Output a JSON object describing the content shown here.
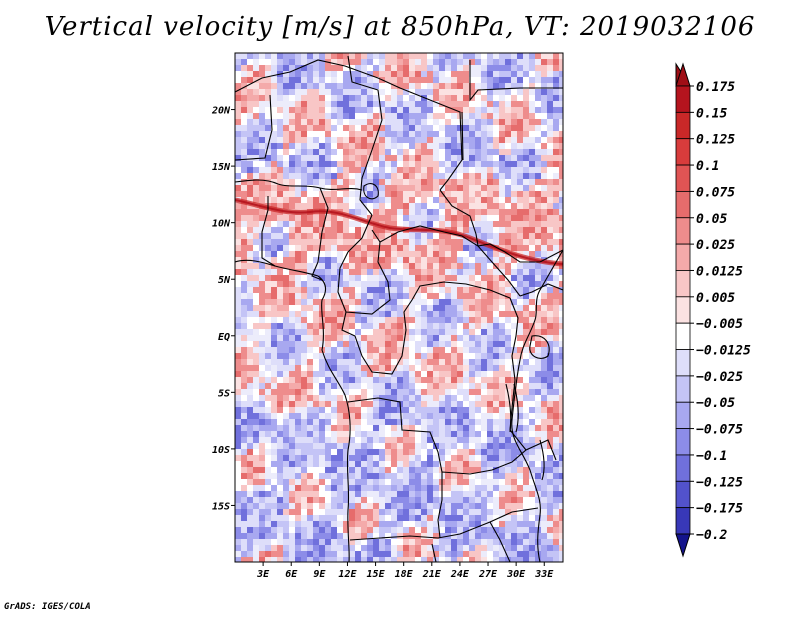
{
  "title": "Vertical velocity [m/s] at 850hPa, VT: 2019032106",
  "credit": "GrADS: IGES/COLA",
  "map": {
    "variable": "Vertical velocity",
    "units": "m/s",
    "level": "850hPa",
    "valid_time": "2019032106",
    "lon_range": [
      0,
      35
    ],
    "lat_range": [
      -20,
      25
    ],
    "lat_ticks": [
      {
        "value": 20,
        "label": "20N"
      },
      {
        "value": 15,
        "label": "15N"
      },
      {
        "value": 10,
        "label": "10N"
      },
      {
        "value": 5,
        "label": "5N"
      },
      {
        "value": 0,
        "label": "EQ"
      },
      {
        "value": -5,
        "label": "5S"
      },
      {
        "value": -10,
        "label": "10S"
      },
      {
        "value": -15,
        "label": "15S"
      }
    ],
    "lon_ticks": [
      {
        "value": 3,
        "label": "3E"
      },
      {
        "value": 6,
        "label": "6E"
      },
      {
        "value": 9,
        "label": "9E"
      },
      {
        "value": 12,
        "label": "12E"
      },
      {
        "value": 15,
        "label": "15E"
      },
      {
        "value": 18,
        "label": "18E"
      },
      {
        "value": 21,
        "label": "21E"
      },
      {
        "value": 24,
        "label": "24E"
      },
      {
        "value": 27,
        "label": "27E"
      },
      {
        "value": 30,
        "label": "30E"
      },
      {
        "value": 33,
        "label": "33E"
      }
    ]
  },
  "colorbar": {
    "levels": [
      {
        "label": "0.175",
        "color": "#b5141e"
      },
      {
        "label": "0.15",
        "color": "#c92828"
      },
      {
        "label": "0.125",
        "color": "#d83c3c"
      },
      {
        "label": "0.1",
        "color": "#e05454"
      },
      {
        "label": "0.075",
        "color": "#e66c6c"
      },
      {
        "label": "0.05",
        "color": "#ee8c8c"
      },
      {
        "label": "0.025",
        "color": "#f4aaaa"
      },
      {
        "label": "0.0125",
        "color": "#f8c6c6"
      },
      {
        "label": "0.005",
        "color": "#fbe2e2"
      },
      {
        "label": "−0.005",
        "color": "#ffffff"
      },
      {
        "label": "−0.0125",
        "color": "#dedefa"
      },
      {
        "label": "−0.025",
        "color": "#c4c4f6"
      },
      {
        "label": "−0.05",
        "color": "#a8a8f0"
      },
      {
        "label": "−0.075",
        "color": "#8c8ce8"
      },
      {
        "label": "−0.1",
        "color": "#7070dc"
      },
      {
        "label": "−0.125",
        "color": "#5252cc"
      },
      {
        "label": "−0.175",
        "color": "#3838b8"
      },
      {
        "label": "−0.2",
        "color": "#2020a0"
      }
    ],
    "top_cap_color": "#a00e16",
    "bottom_cap_color": "#14148c"
  }
}
